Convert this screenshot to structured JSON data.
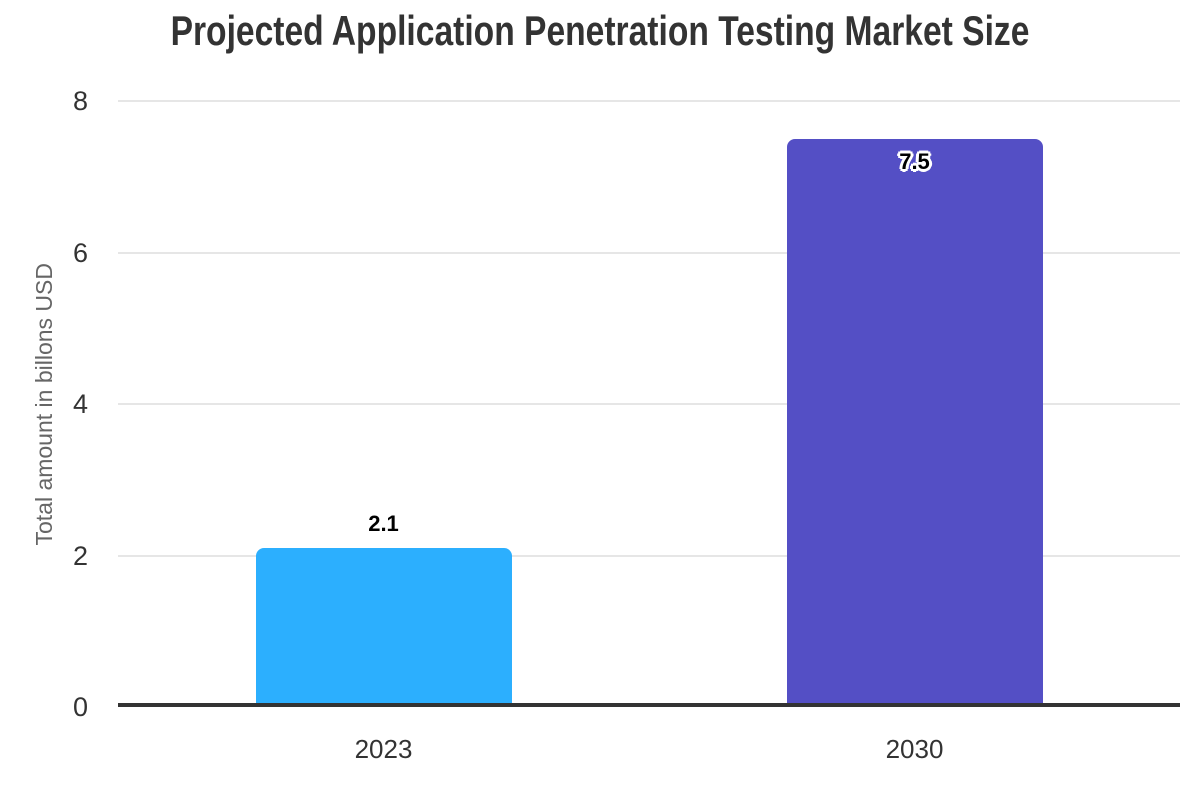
{
  "chart_data": {
    "type": "bar",
    "title": "Projected Application Penetration Testing Market Size",
    "xlabel": "",
    "ylabel": "Total amount in billons USD",
    "categories": [
      "2023",
      "2030"
    ],
    "values": [
      2.1,
      7.5
    ],
    "data_labels": [
      "2.1",
      "7.5"
    ],
    "label_position": [
      "above",
      "inside"
    ],
    "bar_colors": [
      "#2caffe",
      "#544fc5"
    ],
    "ylim": [
      0,
      8
    ],
    "yticks": [
      0,
      2,
      4,
      6,
      8
    ],
    "grid": "horizontal",
    "legend": "none",
    "colors": {
      "background": "#ffffff",
      "title": "#333333",
      "grid": "#e6e6e6",
      "axis_line": "#333333",
      "tick_label": "#333333",
      "ylabel": "#666666",
      "data_label": "#000000",
      "data_label_halo": "#ffffff"
    }
  }
}
